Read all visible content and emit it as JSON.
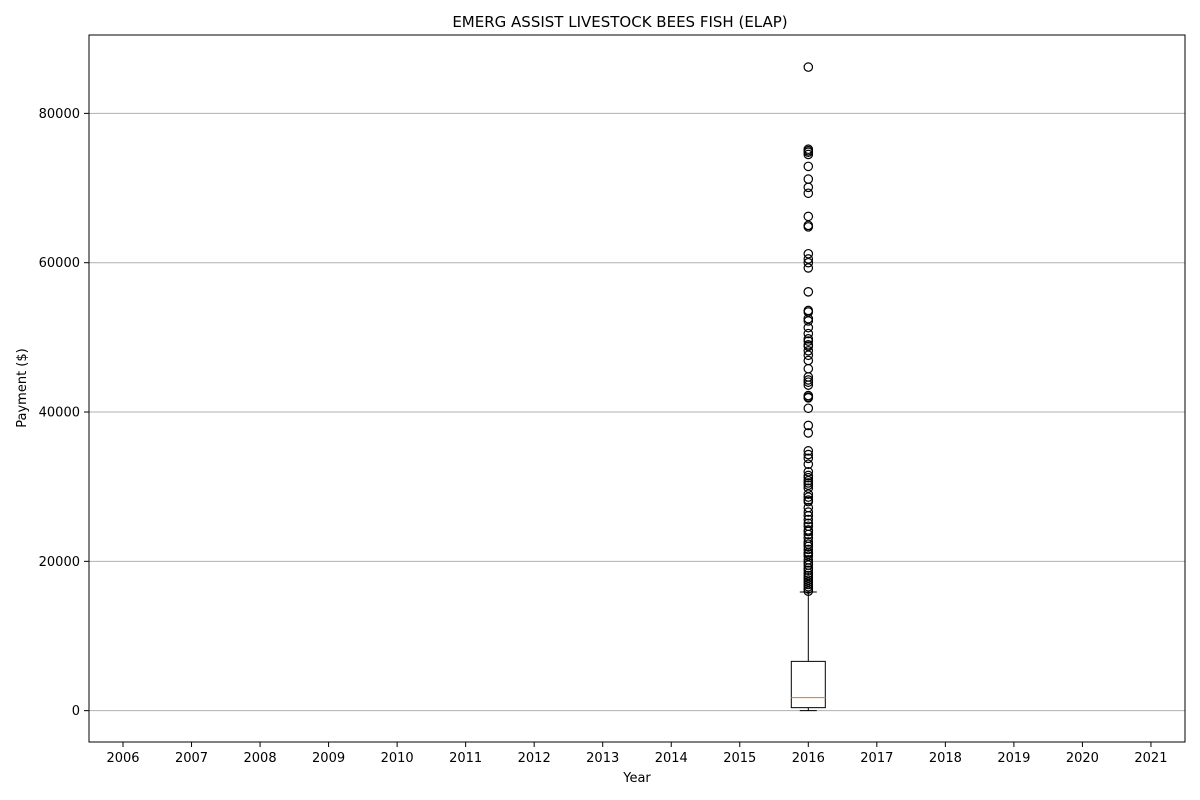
{
  "chart_data": {
    "type": "box",
    "title": "EMERG ASSIST LIVESTOCK BEES FISH (ELAP)",
    "xlabel": "Year",
    "ylabel": "Payment ($)",
    "categories": [
      "2006",
      "2007",
      "2008",
      "2009",
      "2010",
      "2011",
      "2012",
      "2013",
      "2014",
      "2015",
      "2016",
      "2017",
      "2018",
      "2019",
      "2020",
      "2021"
    ],
    "ylim": [
      -4200,
      90500
    ],
    "yticks": [
      0,
      20000,
      40000,
      60000,
      80000
    ],
    "ytick_labels": [
      "0",
      "20000",
      "40000",
      "60000",
      "80000"
    ],
    "grid": "y",
    "colors": {
      "box": "#000000",
      "median": "#ff7f0e",
      "grid": "#b0b0b0"
    },
    "boxes": [
      {
        "category": "2016",
        "whisker_low": 0,
        "q1": 400,
        "median": 1750,
        "q3": 6600,
        "whisker_high": 15900,
        "outliers": [
          86200,
          75200,
          75000,
          74800,
          74500,
          72900,
          71200,
          70100,
          69300,
          66200,
          65000,
          64800,
          61200,
          60500,
          60000,
          59300,
          56100,
          53600,
          53400,
          52500,
          52200,
          51300,
          50500,
          49800,
          49500,
          49000,
          48800,
          48200,
          47600,
          46900,
          45800,
          44700,
          44300,
          44000,
          43600,
          42200,
          42000,
          41900,
          40500,
          38200,
          37200,
          34800,
          34300,
          33800,
          33000,
          32000,
          31500,
          31200,
          30800,
          30500,
          30200,
          29800,
          29000,
          28600,
          28200,
          28000,
          27200,
          26600,
          26100,
          25600,
          25100,
          24700,
          24200,
          24000,
          23600,
          23100,
          22600,
          22300,
          22000,
          21600,
          21200,
          21000,
          20700,
          20200,
          19800,
          19500,
          19100,
          18800,
          18400,
          18100,
          17800,
          17500,
          17200,
          16900,
          16600,
          16300,
          16000
        ]
      }
    ]
  }
}
